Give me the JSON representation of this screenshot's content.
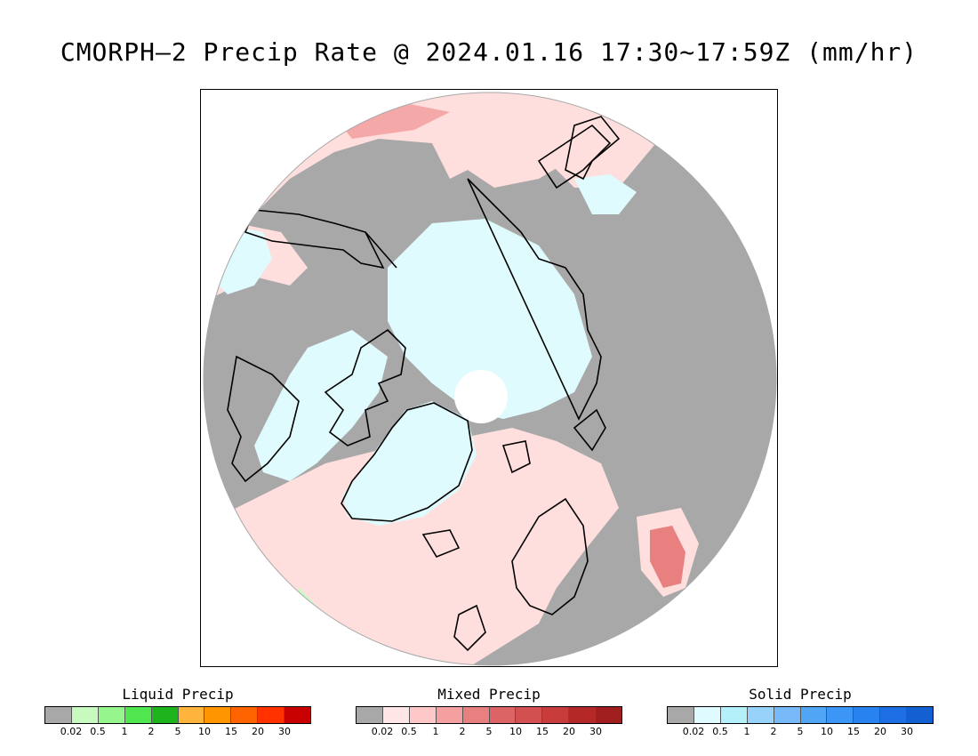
{
  "title": "CMORPH–2 Precip Rate @ 2024.01.16 17:30~17:59Z (mm/hr)",
  "map": {
    "projection": "north-polar-stereographic",
    "colors": {
      "no_precip": "#a8a8a8",
      "mixed_light": "#ffdede",
      "mixed_mid": "#f5a8a8",
      "mixed_strong": "#e88080",
      "solid_light": "#e0fbfd",
      "liquid_light": "#c8fac0",
      "coast": "#000000",
      "pole_gap": "#ffffff"
    }
  },
  "legends": [
    {
      "id": "liquid",
      "title": "Liquid Precip",
      "ticks": [
        "0.02",
        "0.5",
        "1",
        "2",
        "5",
        "10",
        "15",
        "20",
        "30"
      ],
      "colors": [
        "#a8a8a8",
        "#c8fac0",
        "#96f58c",
        "#50e650",
        "#1eb41e",
        "#ffb43c",
        "#ff9600",
        "#ff6400",
        "#ff3200",
        "#c80000"
      ]
    },
    {
      "id": "mixed",
      "title": "Mixed Precip",
      "ticks": [
        "0.02",
        "0.5",
        "1",
        "2",
        "5",
        "10",
        "15",
        "20",
        "30"
      ],
      "colors": [
        "#a8a8a8",
        "#ffe6e6",
        "#ffc8c8",
        "#f5a0a0",
        "#e88080",
        "#dc6464",
        "#d25050",
        "#c83c3c",
        "#b42828",
        "#a01e1e"
      ]
    },
    {
      "id": "solid",
      "title": "Solid Precip",
      "ticks": [
        "0.02",
        "0.5",
        "1",
        "2",
        "5",
        "10",
        "15",
        "20",
        "30"
      ],
      "colors": [
        "#a8a8a8",
        "#e0fbff",
        "#b4f0fa",
        "#96d2fa",
        "#78b9fa",
        "#50a5f5",
        "#3c96f5",
        "#2882f0",
        "#1e6ee6",
        "#1460d2"
      ]
    }
  ]
}
